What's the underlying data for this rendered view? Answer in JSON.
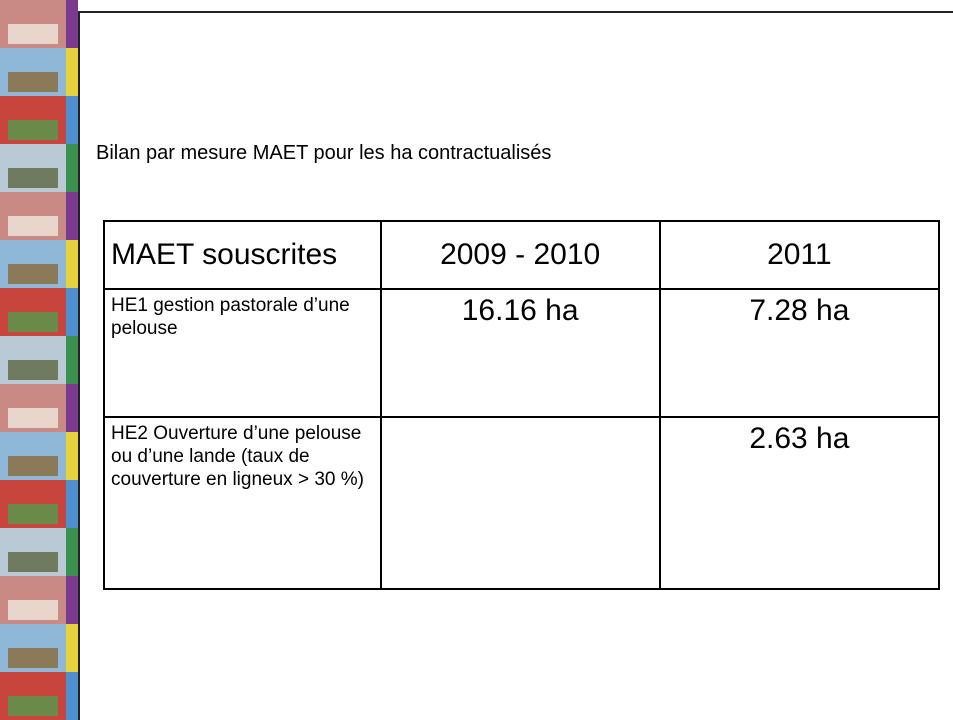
{
  "slide": {
    "subtitle": "Bilan par mesure MAET pour les ha contractualisés"
  },
  "table": {
    "header": [
      "MAET souscrites",
      "2009 - 2010",
      "2011"
    ],
    "rows": [
      [
        "HE1 gestion pastorale d’une pelouse",
        "16.16 ha",
        "7.28 ha"
      ],
      [
        "HE2 Ouverture d’une pelouse ou d’une lande (taux de couverture en ligneux > 30 %)",
        null,
        "2.63 ha"
      ]
    ]
  }
}
